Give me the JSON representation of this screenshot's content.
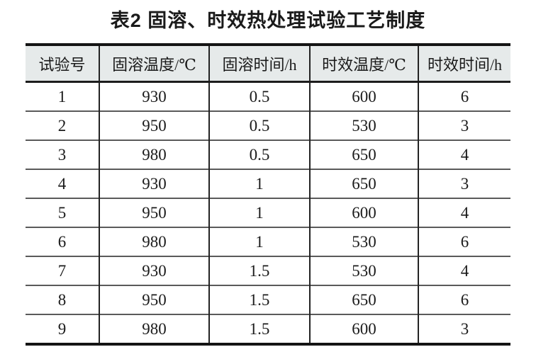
{
  "title": "表2  固溶、时效热处理试验工艺制度",
  "colors": {
    "header_bg": "#e6eaea",
    "text": "#1a1a1a",
    "heavy_rule": "#141414",
    "row_rule": "#5a5a5a",
    "column_rule": "#232323"
  },
  "table": {
    "headers": [
      "试验号",
      "固溶温度/℃",
      "固溶时间/h",
      "时效温度/℃",
      "时效时间/h"
    ],
    "rows": [
      [
        "1",
        "930",
        "0.5",
        "600",
        "6"
      ],
      [
        "2",
        "950",
        "0.5",
        "530",
        "3"
      ],
      [
        "3",
        "980",
        "0.5",
        "650",
        "4"
      ],
      [
        "4",
        "930",
        "1",
        "650",
        "3"
      ],
      [
        "5",
        "950",
        "1",
        "600",
        "4"
      ],
      [
        "6",
        "980",
        "1",
        "530",
        "6"
      ],
      [
        "7",
        "930",
        "1.5",
        "530",
        "4"
      ],
      [
        "8",
        "950",
        "1.5",
        "650",
        "6"
      ],
      [
        "9",
        "980",
        "1.5",
        "600",
        "3"
      ]
    ]
  }
}
